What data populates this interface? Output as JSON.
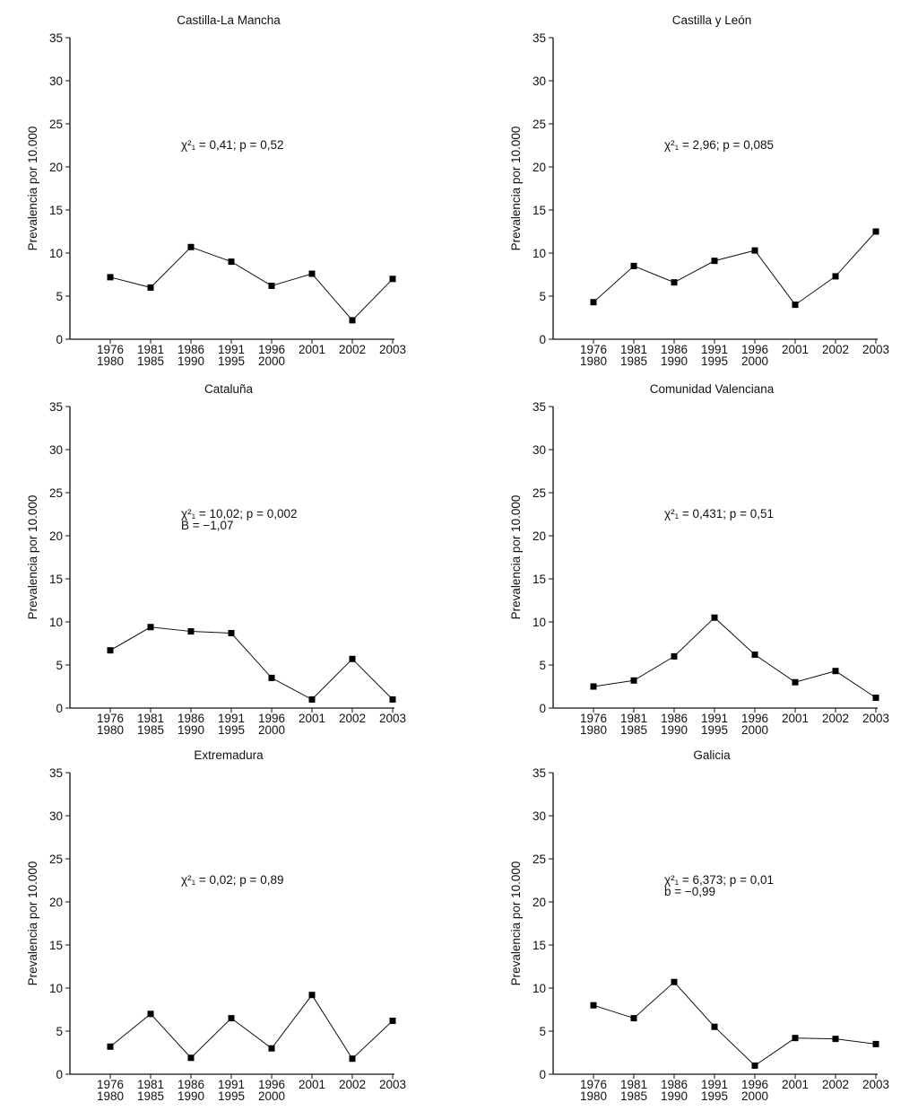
{
  "chart_data": [
    {
      "type": "line",
      "title": "Castilla-La Mancha",
      "ylabel": "Prevalencia por 10.000",
      "ylim": [
        0,
        35
      ],
      "yticks": [
        0,
        5,
        10,
        15,
        20,
        25,
        30,
        35
      ],
      "categories": [
        [
          "1976",
          "1980"
        ],
        [
          "1981",
          "1985"
        ],
        [
          "1986",
          "1990"
        ],
        [
          "1991",
          "1995"
        ],
        [
          "1996",
          "2000"
        ],
        [
          "2001"
        ],
        [
          "2002"
        ],
        [
          "2003"
        ]
      ],
      "values": [
        7.2,
        6.0,
        10.7,
        9.0,
        6.2,
        7.6,
        2.2,
        7.0
      ],
      "annotation": [
        "χ²₁ = 0,41; p = 0,52"
      ]
    },
    {
      "type": "line",
      "title": "Castilla y León",
      "ylabel": "Prevalencia por 10.000",
      "ylim": [
        0,
        35
      ],
      "yticks": [
        0,
        5,
        10,
        15,
        20,
        25,
        30,
        35
      ],
      "categories": [
        [
          "1976",
          "1980"
        ],
        [
          "1981",
          "1985"
        ],
        [
          "1986",
          "1990"
        ],
        [
          "1991",
          "1995"
        ],
        [
          "1996",
          "2000"
        ],
        [
          "2001"
        ],
        [
          "2002"
        ],
        [
          "2003"
        ]
      ],
      "values": [
        4.3,
        8.5,
        6.6,
        9.1,
        10.3,
        4.0,
        7.3,
        12.5
      ],
      "annotation": [
        "χ²₁ = 2,96; p = 0,085"
      ]
    },
    {
      "type": "line",
      "title": "Cataluña",
      "ylabel": "Prevalencia por 10.000",
      "ylim": [
        0,
        35
      ],
      "yticks": [
        0,
        5,
        10,
        15,
        20,
        25,
        30,
        35
      ],
      "categories": [
        [
          "1976",
          "1980"
        ],
        [
          "1981",
          "1985"
        ],
        [
          "1986",
          "1990"
        ],
        [
          "1991",
          "1995"
        ],
        [
          "1996",
          "2000"
        ],
        [
          "2001"
        ],
        [
          "2002"
        ],
        [
          "2003"
        ]
      ],
      "values": [
        6.7,
        9.4,
        8.9,
        8.7,
        3.5,
        1.0,
        5.7,
        1.0
      ],
      "annotation": [
        "χ²₁ = 10,02; p = 0,002",
        "B = −1,07"
      ]
    },
    {
      "type": "line",
      "title": "Comunidad Valenciana",
      "ylabel": "Prevalencia por 10.000",
      "ylim": [
        0,
        35
      ],
      "yticks": [
        0,
        5,
        10,
        15,
        20,
        25,
        30,
        35
      ],
      "categories": [
        [
          "1976",
          "1980"
        ],
        [
          "1981",
          "1985"
        ],
        [
          "1986",
          "1990"
        ],
        [
          "1991",
          "1995"
        ],
        [
          "1996",
          "2000"
        ],
        [
          "2001"
        ],
        [
          "2002"
        ],
        [
          "2003"
        ]
      ],
      "values": [
        2.5,
        3.2,
        6.0,
        10.5,
        6.2,
        3.0,
        4.3,
        1.2
      ],
      "annotation": [
        "χ²₁ = 0,431; p = 0,51"
      ]
    },
    {
      "type": "line",
      "title": "Extremadura",
      "ylabel": "Prevalencia por 10.000",
      "ylim": [
        0,
        35
      ],
      "yticks": [
        0,
        5,
        10,
        15,
        20,
        25,
        30,
        35
      ],
      "categories": [
        [
          "1976",
          "1980"
        ],
        [
          "1981",
          "1985"
        ],
        [
          "1986",
          "1990"
        ],
        [
          "1991",
          "1995"
        ],
        [
          "1996",
          "2000"
        ],
        [
          "2001"
        ],
        [
          "2002"
        ],
        [
          "2003"
        ]
      ],
      "values": [
        3.2,
        7.0,
        1.9,
        6.5,
        3.0,
        9.2,
        1.8,
        6.2
      ],
      "annotation": [
        "χ²₁ = 0,02; p = 0,89"
      ]
    },
    {
      "type": "line",
      "title": "Galicia",
      "ylabel": "Prevalencia por 10.000",
      "ylim": [
        0,
        35
      ],
      "yticks": [
        0,
        5,
        10,
        15,
        20,
        25,
        30,
        35
      ],
      "categories": [
        [
          "1976",
          "1980"
        ],
        [
          "1981",
          "1985"
        ],
        [
          "1986",
          "1990"
        ],
        [
          "1991",
          "1995"
        ],
        [
          "1996",
          "2000"
        ],
        [
          "2001"
        ],
        [
          "2002"
        ],
        [
          "2003"
        ]
      ],
      "values": [
        8.0,
        6.5,
        10.7,
        5.5,
        1.0,
        4.2,
        4.1,
        3.5
      ],
      "annotation": [
        "χ²₁ = 6,373; p = 0,01",
        "b = −0,99"
      ]
    }
  ]
}
